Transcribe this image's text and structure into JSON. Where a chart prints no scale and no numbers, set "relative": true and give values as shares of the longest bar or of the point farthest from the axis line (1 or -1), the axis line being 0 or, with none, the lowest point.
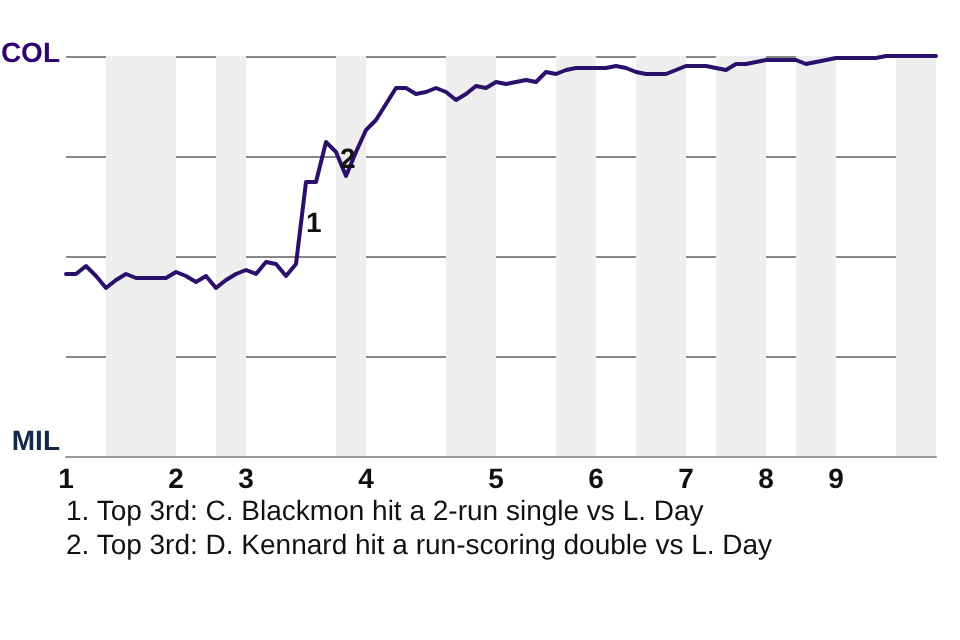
{
  "chart_data": {
    "type": "line",
    "relative": true,
    "categories": [
      "1",
      null,
      null,
      null,
      null,
      null,
      null,
      null,
      null,
      null,
      null,
      "2",
      null,
      null,
      null,
      null,
      null,
      null,
      "3",
      null,
      null,
      null,
      null,
      null,
      null,
      null,
      null,
      null,
      null,
      null,
      "4",
      null,
      null,
      null,
      null,
      null,
      null,
      null,
      null,
      null,
      null,
      null,
      null,
      "5",
      null,
      null,
      null,
      null,
      null,
      null,
      null,
      null,
      null,
      "6",
      null,
      null,
      null,
      null,
      null,
      null,
      null,
      null,
      "7",
      null,
      null,
      null,
      null,
      null,
      null,
      null,
      "8",
      null,
      null,
      null,
      null,
      null,
      null,
      "9",
      null,
      null,
      null,
      null,
      null,
      null,
      null,
      null,
      null,
      null
    ],
    "series": [
      {
        "color": "#2b0f6b",
        "values": [
          0.455,
          0.455,
          0.475,
          0.45,
          0.42,
          0.44,
          0.455,
          0.445,
          0.445,
          0.445,
          0.445,
          0.46,
          0.45,
          0.435,
          0.45,
          0.42,
          0.44,
          0.455,
          0.465,
          0.455,
          0.485,
          0.48,
          0.45,
          0.48,
          0.685,
          0.685,
          0.785,
          0.76,
          0.7,
          0.76,
          0.815,
          0.84,
          0.88,
          0.92,
          0.92,
          0.905,
          0.91,
          0.92,
          0.91,
          0.89,
          0.905,
          0.925,
          0.92,
          0.935,
          0.93,
          0.935,
          0.94,
          0.935,
          0.96,
          0.955,
          0.965,
          0.97,
          0.97,
          0.97,
          0.97,
          0.975,
          0.97,
          0.96,
          0.955,
          0.955,
          0.955,
          0.965,
          0.975,
          0.975,
          0.975,
          0.97,
          0.965,
          0.98,
          0.98,
          0.985,
          0.99,
          0.99,
          0.99,
          0.99,
          0.98,
          0.985,
          0.99,
          0.995,
          0.995,
          0.995,
          0.995,
          0.995,
          1,
          1,
          1,
          1,
          1,
          1
        ]
      }
    ],
    "grid": "y",
    "annotations": [
      "COL",
      "MIL",
      "1",
      "2",
      "1. Top 3rd: C. Blackmon hit a 2-run single vs L. Day",
      "2. Top 3rd: D. Kennard hit a run-scoring double vs L. Day"
    ],
    "marker": "none",
    "line_style": "solid"
  }
}
